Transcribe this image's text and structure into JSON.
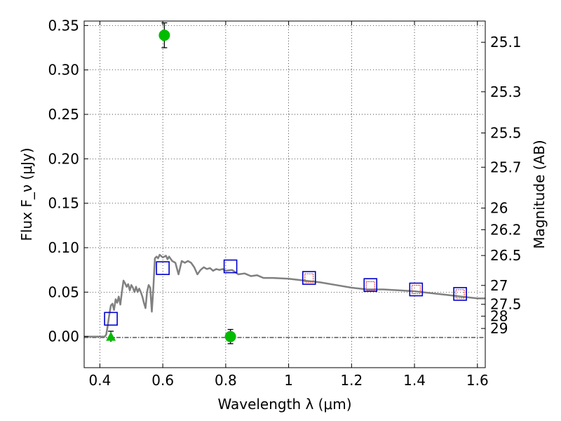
{
  "chart_data": {
    "type": "scatter",
    "xlabel": "Wavelength λ (μm)",
    "ylabel": "Flux F_ν (μJy)",
    "ylabel_right": "Magnitude (AB)",
    "xlim": [
      0.35,
      1.625
    ],
    "ylim": [
      -0.035,
      0.355
    ],
    "grid": true,
    "x_ticks": [
      0.4,
      0.6,
      0.8,
      1.0,
      1.2,
      1.4,
      1.6
    ],
    "x_tick_labels": [
      "0.4",
      "0.6",
      "0.8",
      "1",
      "1.2",
      "1.4",
      "1.6"
    ],
    "y_ticks": [
      0.0,
      0.05,
      0.1,
      0.15,
      0.2,
      0.25,
      0.3,
      0.35
    ],
    "y_tick_labels": [
      "0.00",
      "0.05",
      "0.10",
      "0.15",
      "0.20",
      "0.25",
      "0.30",
      "0.35"
    ],
    "mag_ticks": [
      {
        "mag": 25.1,
        "label": "25.1"
      },
      {
        "mag": 25.3,
        "label": "25.3"
      },
      {
        "mag": 25.5,
        "label": "25.5"
      },
      {
        "mag": 25.7,
        "label": "25.7"
      },
      {
        "mag": 26.0,
        "label": "26"
      },
      {
        "mag": 26.2,
        "label": "26.2"
      },
      {
        "mag": 26.5,
        "label": "26.5"
      },
      {
        "mag": 27.0,
        "label": "27"
      },
      {
        "mag": 27.5,
        "label": "27.5"
      },
      {
        "mag": 28.0,
        "label": "28"
      },
      {
        "mag": 29.0,
        "label": "29"
      }
    ],
    "series": [
      {
        "kind": "model_sed_line",
        "color": "#808080",
        "points": [
          [
            0.35,
            0.0
          ],
          [
            0.415,
            0.0
          ],
          [
            0.42,
            0.002
          ],
          [
            0.425,
            0.012
          ],
          [
            0.43,
            0.025
          ],
          [
            0.435,
            0.035
          ],
          [
            0.44,
            0.037
          ],
          [
            0.445,
            0.03
          ],
          [
            0.45,
            0.042
          ],
          [
            0.455,
            0.038
          ],
          [
            0.46,
            0.045
          ],
          [
            0.465,
            0.036
          ],
          [
            0.47,
            0.05
          ],
          [
            0.475,
            0.063
          ],
          [
            0.48,
            0.06
          ],
          [
            0.485,
            0.056
          ],
          [
            0.49,
            0.059
          ],
          [
            0.495,
            0.052
          ],
          [
            0.5,
            0.058
          ],
          [
            0.505,
            0.055
          ],
          [
            0.51,
            0.05
          ],
          [
            0.515,
            0.056
          ],
          [
            0.52,
            0.05
          ],
          [
            0.525,
            0.054
          ],
          [
            0.53,
            0.05
          ],
          [
            0.535,
            0.045
          ],
          [
            0.54,
            0.038
          ],
          [
            0.545,
            0.032
          ],
          [
            0.55,
            0.05
          ],
          [
            0.555,
            0.058
          ],
          [
            0.56,
            0.055
          ],
          [
            0.565,
            0.028
          ],
          [
            0.57,
            0.055
          ],
          [
            0.575,
            0.088
          ],
          [
            0.58,
            0.09
          ],
          [
            0.585,
            0.088
          ],
          [
            0.59,
            0.092
          ],
          [
            0.6,
            0.089
          ],
          [
            0.61,
            0.091
          ],
          [
            0.615,
            0.087
          ],
          [
            0.62,
            0.09
          ],
          [
            0.63,
            0.085
          ],
          [
            0.64,
            0.083
          ],
          [
            0.65,
            0.07
          ],
          [
            0.66,
            0.085
          ],
          [
            0.67,
            0.083
          ],
          [
            0.68,
            0.085
          ],
          [
            0.69,
            0.083
          ],
          [
            0.7,
            0.078
          ],
          [
            0.71,
            0.07
          ],
          [
            0.72,
            0.075
          ],
          [
            0.73,
            0.078
          ],
          [
            0.74,
            0.076
          ],
          [
            0.75,
            0.077
          ],
          [
            0.76,
            0.074
          ],
          [
            0.77,
            0.076
          ],
          [
            0.78,
            0.075
          ],
          [
            0.79,
            0.076
          ],
          [
            0.8,
            0.074
          ],
          [
            0.82,
            0.075
          ],
          [
            0.84,
            0.07
          ],
          [
            0.86,
            0.071
          ],
          [
            0.88,
            0.068
          ],
          [
            0.9,
            0.069
          ],
          [
            0.92,
            0.066
          ],
          [
            0.95,
            0.066
          ],
          [
            1.0,
            0.065
          ],
          [
            1.05,
            0.063
          ],
          [
            1.1,
            0.061
          ],
          [
            1.15,
            0.058
          ],
          [
            1.2,
            0.055
          ],
          [
            1.25,
            0.053
          ],
          [
            1.3,
            0.053
          ],
          [
            1.35,
            0.052
          ],
          [
            1.4,
            0.051
          ],
          [
            1.45,
            0.049
          ],
          [
            1.5,
            0.047
          ],
          [
            1.55,
            0.045
          ],
          [
            1.6,
            0.043
          ],
          [
            1.625,
            0.043
          ]
        ]
      },
      {
        "kind": "model_photometry",
        "marker": "open_square",
        "color": "#0000cc",
        "points": [
          [
            0.435,
            0.02
          ],
          [
            0.6,
            0.077
          ],
          [
            0.815,
            0.079
          ],
          [
            1.065,
            0.066
          ],
          [
            1.26,
            0.058
          ],
          [
            1.405,
            0.053
          ],
          [
            1.545,
            0.048
          ]
        ]
      },
      {
        "kind": "observed_photometry_hst",
        "marker": "small_open_square",
        "color": "#e03030",
        "points": [
          [
            1.065,
            0.066
          ],
          [
            1.26,
            0.057
          ],
          [
            1.405,
            0.053
          ],
          [
            1.545,
            0.048
          ]
        ]
      },
      {
        "kind": "observed_photometry_ground",
        "marker": "filled_circle",
        "color": "#00bb00",
        "points": [
          [
            0.605,
            0.339
          ],
          [
            0.815,
            0.0
          ]
        ],
        "errors": [
          0.014,
          0.008
        ]
      },
      {
        "kind": "upper_limit",
        "marker": "filled_triangle",
        "color": "#00bb00",
        "points": [
          [
            0.435,
            0.0
          ]
        ],
        "errors": [
          0.006
        ]
      }
    ]
  }
}
